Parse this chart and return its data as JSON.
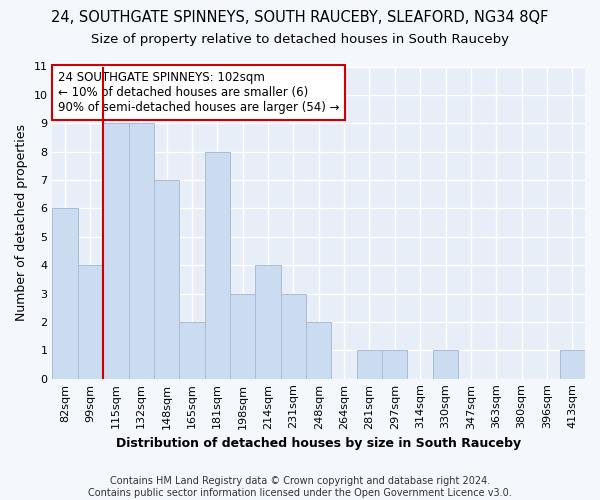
{
  "title": "24, SOUTHGATE SPINNEYS, SOUTH RAUCEBY, SLEAFORD, NG34 8QF",
  "subtitle": "Size of property relative to detached houses in South Rauceby",
  "xlabel": "Distribution of detached houses by size in South Rauceby",
  "ylabel": "Number of detached properties",
  "categories": [
    "82sqm",
    "99sqm",
    "115sqm",
    "132sqm",
    "148sqm",
    "165sqm",
    "181sqm",
    "198sqm",
    "214sqm",
    "231sqm",
    "248sqm",
    "264sqm",
    "281sqm",
    "297sqm",
    "314sqm",
    "330sqm",
    "347sqm",
    "363sqm",
    "380sqm",
    "396sqm",
    "413sqm"
  ],
  "values": [
    6,
    4,
    9,
    9,
    7,
    2,
    8,
    3,
    4,
    3,
    2,
    0,
    1,
    1,
    0,
    1,
    0,
    0,
    0,
    0,
    1
  ],
  "bar_color": "#ccdcf0",
  "bar_edge_color": "#aabbd8",
  "vline_color": "#cc0000",
  "vline_x_index": 1.5,
  "annotation_text": "24 SOUTHGATE SPINNEYS: 102sqm\n← 10% of detached houses are smaller (6)\n90% of semi-detached houses are larger (54) →",
  "annotation_box_color": "#ffffff",
  "annotation_box_edge": "#cc0000",
  "ylim": [
    0,
    11
  ],
  "yticks": [
    0,
    1,
    2,
    3,
    4,
    5,
    6,
    7,
    8,
    9,
    10,
    11
  ],
  "footer": "Contains HM Land Registry data © Crown copyright and database right 2024.\nContains public sector information licensed under the Open Government Licence v3.0.",
  "bg_color": "#f4f7fc",
  "plot_bg_color": "#e8eef8",
  "grid_color": "#ffffff",
  "title_fontsize": 10.5,
  "subtitle_fontsize": 9.5,
  "xlabel_fontsize": 9,
  "ylabel_fontsize": 9,
  "tick_fontsize": 8,
  "annotation_fontsize": 8.5,
  "footer_fontsize": 7
}
